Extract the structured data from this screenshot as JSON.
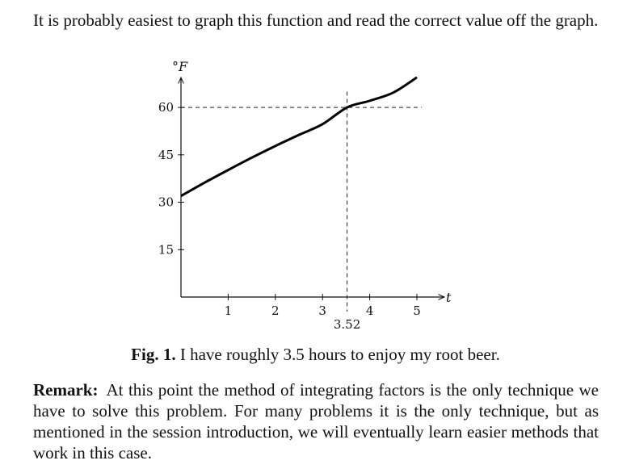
{
  "intro_text": "It is probably easiest to graph this function and read the correct value off the graph.",
  "figure": {
    "caption_label": "Fig. 1.",
    "caption_text": "I have roughly 3.5 hours to enjoy my root beer."
  },
  "remark": {
    "label": "Remark:",
    "text": "At this point the method of integrating factors is the only technique we have to solve this problem. For many problems it is the only technique, but as mentioned in the session introduction, we will eventually learn easier methods that work in this case."
  },
  "chart_data": {
    "type": "line",
    "ylabel": "°F",
    "xlabel": "t",
    "xlim": [
      0,
      5.5
    ],
    "ylim": [
      0,
      70
    ],
    "x_ticks": [
      1,
      2,
      3,
      4,
      5
    ],
    "y_ticks": [
      15,
      30,
      45,
      60
    ],
    "series": [
      {
        "x": [
          0,
          0.5,
          1,
          1.5,
          2,
          2.5,
          3,
          3.52,
          4,
          4.5,
          5
        ],
        "values": [
          32,
          36.2,
          40.2,
          44.1,
          47.8,
          51.3,
          54.7,
          60,
          62.1,
          64.7,
          69.5
        ],
        "color": "#000000"
      }
    ],
    "guides": {
      "y": 60,
      "x": 3.52,
      "x_label": "3.52"
    }
  }
}
